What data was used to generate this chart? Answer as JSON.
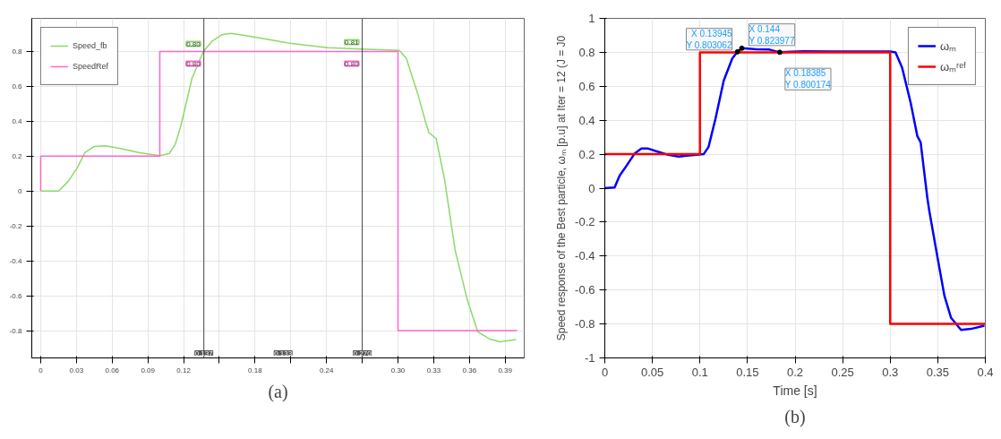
{
  "chart_data": [
    {
      "type": "line",
      "title": "(a)",
      "grid": true,
      "legend": "top left",
      "xlim": [
        -0.0075,
        0.406
      ],
      "ylim": [
        -0.956,
        0.99
      ],
      "xticks": [
        0,
        0.03,
        0.06,
        0.09,
        0.12,
        {
          "value": 0.15,
          "label": null
        },
        0.18,
        {
          "value": 0.21,
          "label": null
        },
        0.24,
        {
          "value": 0.27,
          "label": null
        },
        {
          "value": 0.3,
          "label": "0.30"
        },
        0.33,
        0.36,
        0.39
      ],
      "yticks": [
        -0.8,
        -0.6,
        -0.4,
        -0.2,
        0,
        0.2,
        0.4,
        0.6,
        0.8
      ],
      "series": [
        {
          "name": "Speed_fb",
          "color": "#8cd96b",
          "x": [
            0,
            0.015,
            0.023,
            0.031,
            0.037,
            0.045,
            0.054,
            0.067,
            0.083,
            0.1,
            0.108,
            0.113,
            0.118,
            0.127,
            0.1366,
            0.144,
            0.152,
            0.16,
            0.178,
            0.209,
            0.241,
            0.269,
            0.301,
            0.307,
            0.317,
            0.323,
            0.326,
            0.332,
            0.339,
            0.348,
            0.358,
            0.367,
            0.377,
            0.386,
            0.399
          ],
          "values": [
            0,
            0,
            0.055,
            0.137,
            0.22,
            0.256,
            0.26,
            0.244,
            0.22,
            0.203,
            0.216,
            0.268,
            0.383,
            0.646,
            0.8,
            0.86,
            0.896,
            0.904,
            0.885,
            0.847,
            0.822,
            0.814,
            0.807,
            0.761,
            0.548,
            0.4,
            0.334,
            0.302,
            0.072,
            -0.339,
            -0.618,
            -0.807,
            -0.848,
            -0.864,
            -0.851
          ]
        },
        {
          "name": "SpeedRef",
          "color": "#ff66cc",
          "x": [
            0,
            0,
            0.1,
            0.1,
            0.3,
            0.3,
            0.4
          ],
          "values": [
            0,
            0.2,
            0.2,
            0.8,
            0.8,
            -0.8,
            -0.8
          ]
        }
      ],
      "ref_lines": [
        {
          "axis": "x",
          "value": 0.137,
          "label": "0.137",
          "color": "#444444"
        },
        {
          "axis": "x",
          "value": 0.27,
          "label": "0.270",
          "color": "#444444"
        }
      ],
      "annotations": [
        {
          "text": "0.80",
          "x": 0.137,
          "y": 0.8
        },
        {
          "text": "0.80",
          "x": 0.137,
          "y": 0.8
        },
        {
          "text": "0.81",
          "x": 0.27,
          "y": 0.81
        },
        {
          "text": "0.80",
          "x": 0.27,
          "y": 0.8
        },
        "0.133"
      ]
    },
    {
      "type": "line",
      "title": "(b)",
      "grid": true,
      "legend": "top right",
      "xlabel": "Time [s]",
      "ylabel": "Speed response of the Best particle, ωₘ [p.u] at Iter = 12 (J = J0",
      "xlim": [
        0,
        0.4
      ],
      "ylim": [
        -1,
        1
      ],
      "xticks": [
        0,
        0.05,
        0.1,
        0.15,
        0.2,
        0.25,
        0.3,
        0.35,
        0.4
      ],
      "yticks": [
        -1,
        -0.8,
        -0.6,
        -0.4,
        -0.2,
        0,
        0.2,
        0.4,
        0.6,
        0.8,
        1
      ],
      "series": [
        {
          "name": "ωₘ",
          "color": "#0000ff",
          "x": [
            0,
            0.0103,
            0.0156,
            0.0226,
            0.0315,
            0.0385,
            0.0456,
            0.0562,
            0.0668,
            0.0775,
            0.0916,
            0.104,
            0.109,
            0.1164,
            0.125,
            0.134,
            0.13945,
            0.144,
            0.159,
            0.173,
            0.18385,
            0.208,
            0.244,
            0.279,
            0.3,
            0.3056,
            0.3126,
            0.3215,
            0.3285,
            0.332,
            0.339,
            0.341,
            0.3498,
            0.357,
            0.364,
            0.3745,
            0.385,
            0.399
          ],
          "values": [
            0,
            0.004,
            0.074,
            0.13,
            0.205,
            0.233,
            0.233,
            0.214,
            0.196,
            0.186,
            0.194,
            0.201,
            0.242,
            0.41,
            0.633,
            0.764,
            0.803062,
            0.823977,
            0.818,
            0.816,
            0.800174,
            0.806,
            0.805,
            0.805,
            0.805,
            0.8,
            0.708,
            0.503,
            0.307,
            0.27,
            -0.056,
            -0.131,
            -0.41,
            -0.634,
            -0.764,
            -0.835,
            -0.829,
            -0.81
          ]
        },
        {
          "name": "ωₘʳᵉᶠ",
          "color": "#ff0000",
          "x": [
            0,
            0.1,
            0.1,
            0.3,
            0.3,
            0.4
          ],
          "values": [
            0.2,
            0.2,
            0.8,
            0.8,
            -0.8,
            -0.8
          ]
        }
      ],
      "annotations": [
        {
          "text": "X 0.13945\nY 0.803062",
          "x": 0.13945,
          "y": 0.803062
        },
        {
          "text": "X 0.144\nY 0.823977",
          "x": 0.144,
          "y": 0.823977
        },
        {
          "text": "X 0.18385\nY 0.800174",
          "x": 0.18385,
          "y": 0.800174
        }
      ]
    }
  ]
}
